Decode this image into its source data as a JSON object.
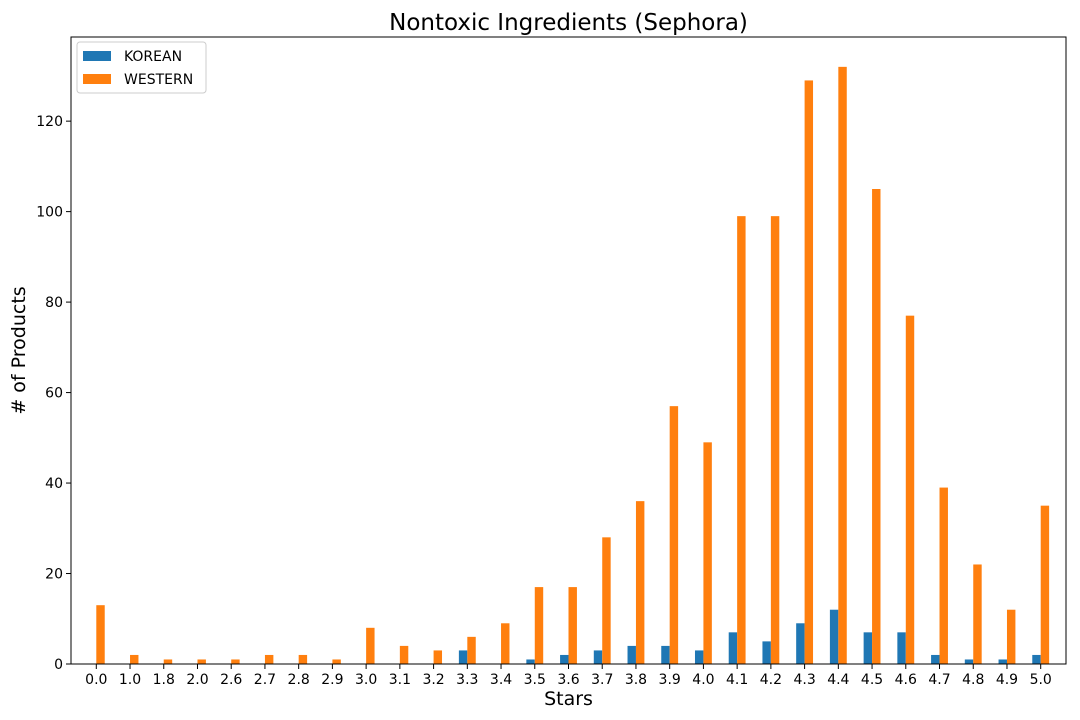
{
  "chart_data": {
    "type": "bar",
    "title": "Nontoxic Ingredients (Sephora)",
    "xlabel": "Stars",
    "ylabel": "# of Products",
    "categories": [
      "0.0",
      "1.0",
      "1.8",
      "2.0",
      "2.6",
      "2.7",
      "2.8",
      "2.9",
      "3.0",
      "3.1",
      "3.2",
      "3.3",
      "3.4",
      "3.5",
      "3.6",
      "3.7",
      "3.8",
      "3.9",
      "4.0",
      "4.1",
      "4.2",
      "4.3",
      "4.4",
      "4.5",
      "4.6",
      "4.7",
      "4.8",
      "4.9",
      "5.0"
    ],
    "series": [
      {
        "name": "KOREAN",
        "color": "#1f77b4",
        "values": [
          0,
          0,
          0,
          0,
          0,
          0,
          0,
          0,
          0,
          0,
          0,
          3,
          0,
          1,
          2,
          3,
          4,
          4,
          3,
          7,
          5,
          9,
          12,
          7,
          7,
          2,
          1,
          1,
          2
        ]
      },
      {
        "name": "WESTERN",
        "color": "#ff7f0e",
        "values": [
          13,
          2,
          1,
          1,
          1,
          2,
          2,
          1,
          8,
          4,
          3,
          6,
          9,
          17,
          17,
          28,
          36,
          57,
          49,
          99,
          99,
          129,
          132,
          105,
          77,
          39,
          22,
          12,
          35
        ]
      }
    ],
    "yticks": [
      0,
      20,
      40,
      60,
      80,
      100,
      120
    ],
    "ylim": [
      0,
      138.6
    ],
    "grid": false,
    "legend_position": "top-left"
  }
}
